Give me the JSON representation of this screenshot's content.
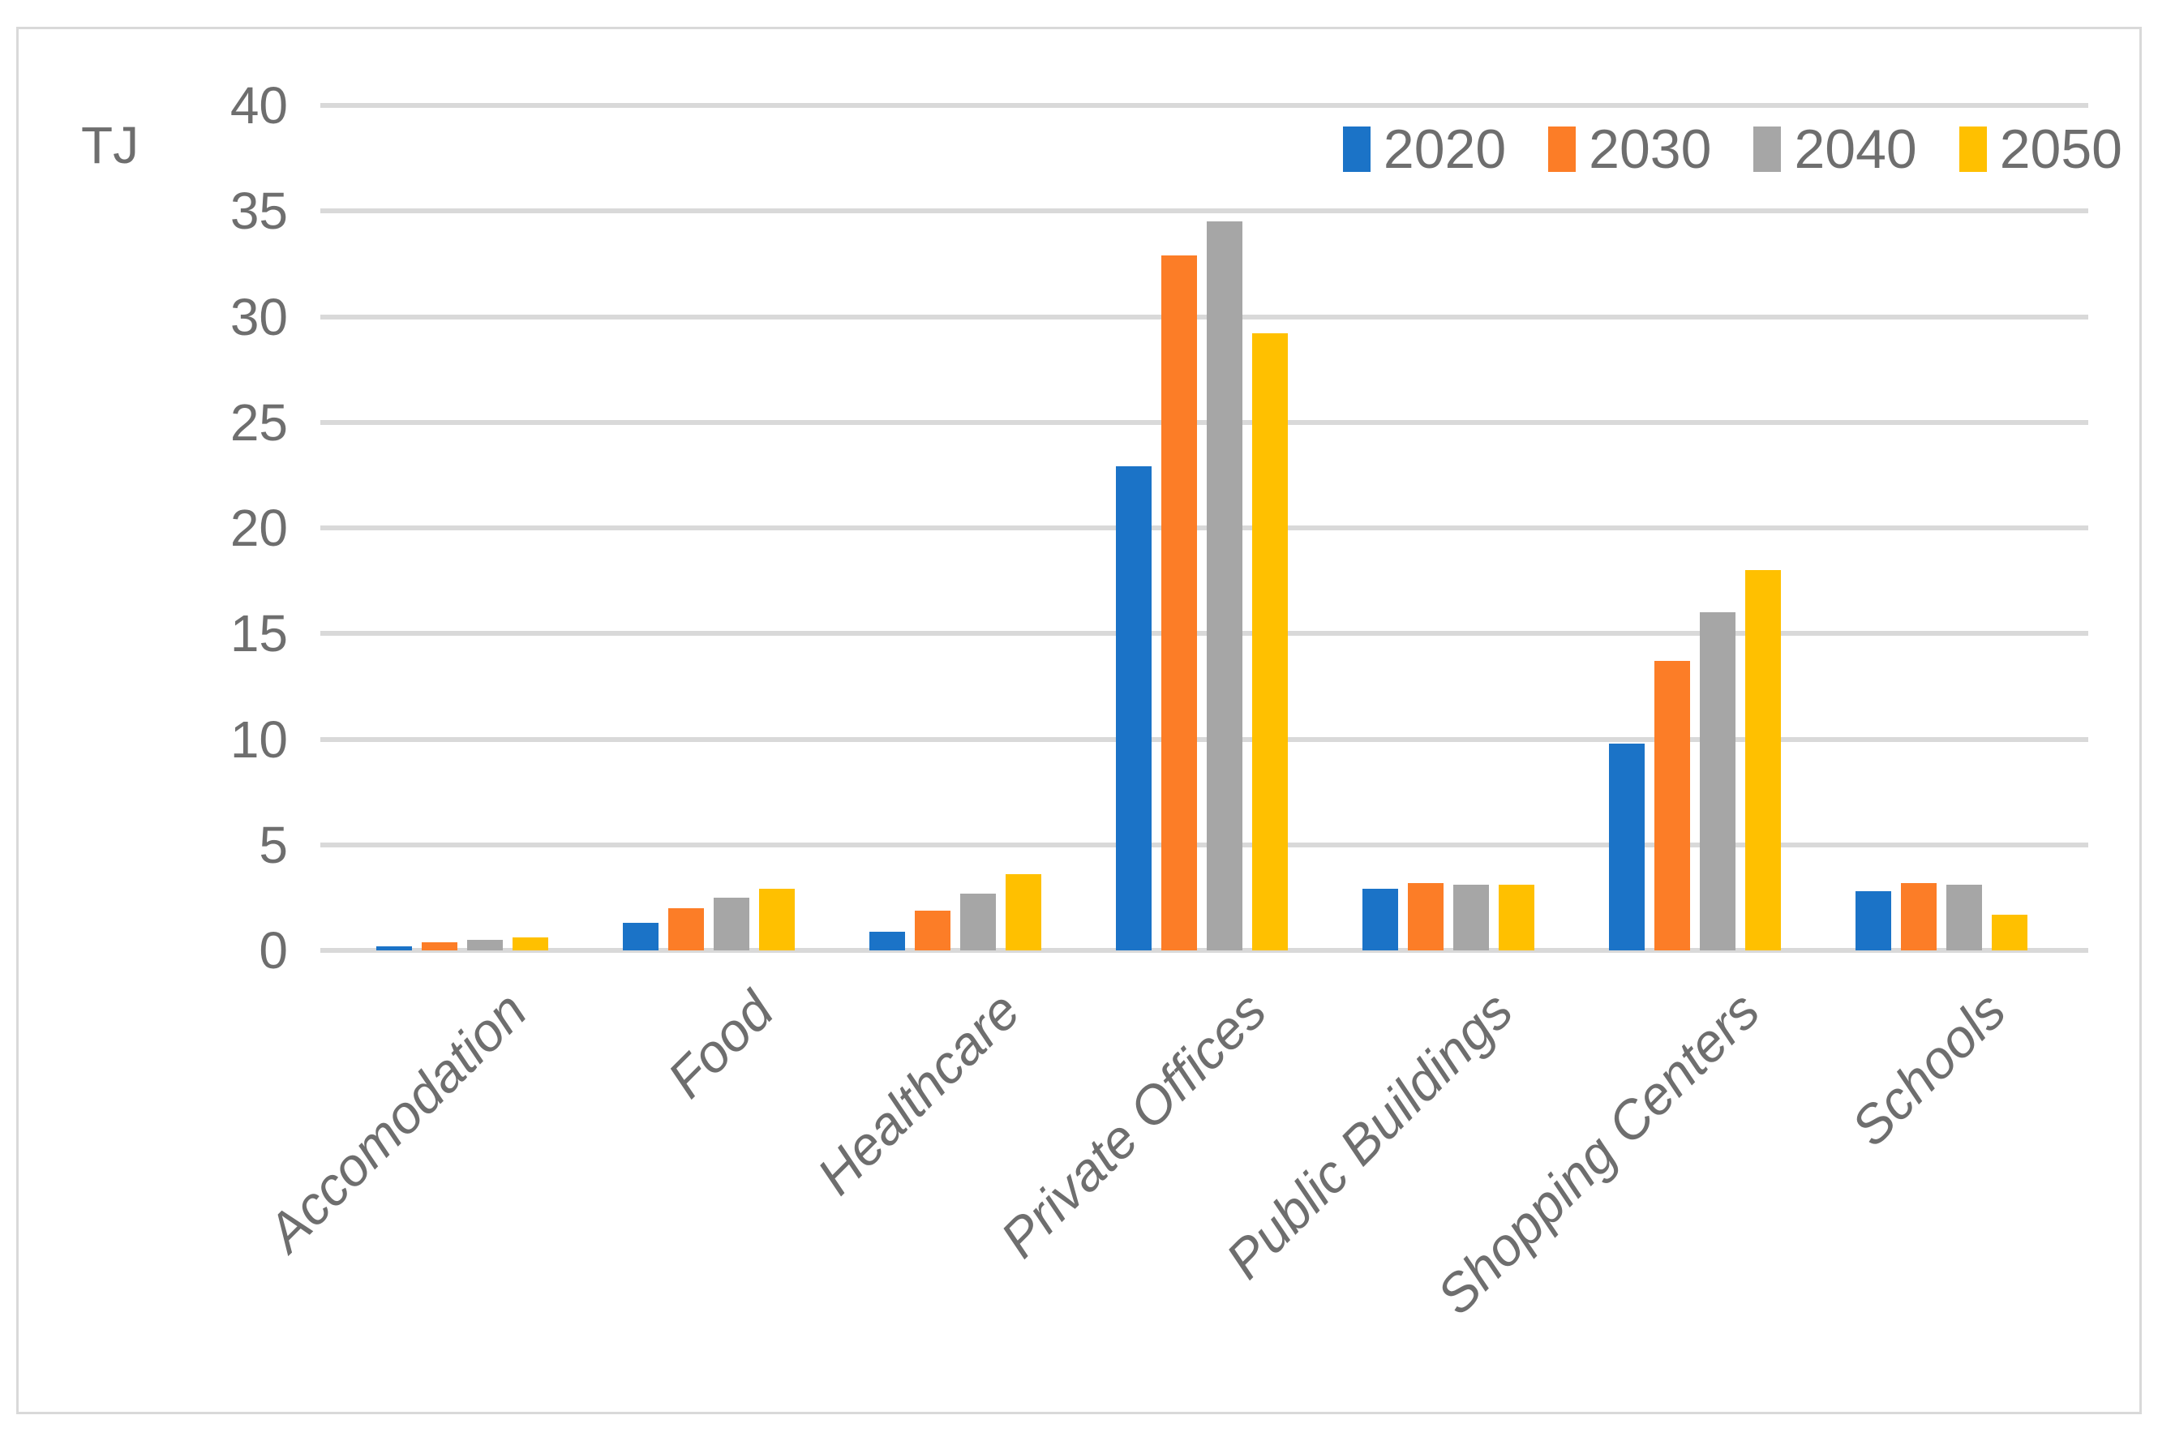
{
  "chart_data": {
    "type": "bar",
    "title": "",
    "unit_label": "TJ",
    "xlabel": "",
    "ylabel": "TJ",
    "categories": [
      "Accomodation",
      "Food",
      "Healthcare",
      "Private Offices",
      "Public Buildings",
      "Shopping Centers",
      "Schools"
    ],
    "series": [
      {
        "name": "2020",
        "color": "#1B73C7",
        "values": [
          0.2,
          1.3,
          0.9,
          22.9,
          2.9,
          9.8,
          2.8
        ]
      },
      {
        "name": "2030",
        "color": "#FC7D27",
        "values": [
          0.4,
          2.0,
          1.9,
          32.9,
          3.2,
          13.7,
          3.2
        ]
      },
      {
        "name": "2040",
        "color": "#A6A6A6",
        "values": [
          0.5,
          2.5,
          2.7,
          34.5,
          3.1,
          16.0,
          3.1
        ]
      },
      {
        "name": "2050",
        "color": "#FFC000",
        "values": [
          0.6,
          2.9,
          3.6,
          29.2,
          3.1,
          18.0,
          1.7
        ]
      }
    ],
    "ylim": [
      0,
      40
    ],
    "ytick_step": 5,
    "ytick_labels": [
      "0",
      "5",
      "10",
      "15",
      "20",
      "25",
      "30",
      "35",
      "40"
    ],
    "grid": "horizontal-only",
    "legend_position": "top-right",
    "colors": {
      "gridline": "#D9D9D9",
      "frame_border": "#D9D9D9",
      "axis_text": "#6E6E6E"
    }
  }
}
